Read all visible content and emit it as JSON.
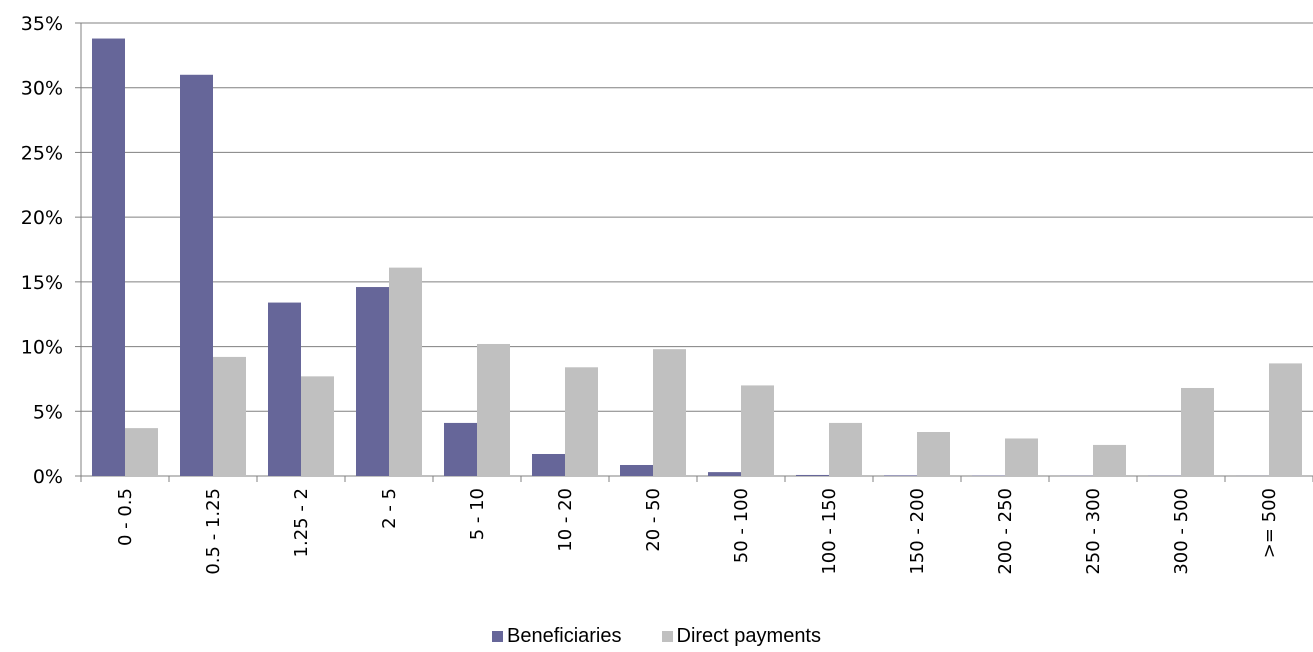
{
  "chart_data": {
    "type": "bar",
    "title": "",
    "xlabel": "",
    "ylabel": "",
    "ylim": [
      0,
      35
    ],
    "y_ticks": [
      "0%",
      "5%",
      "10%",
      "15%",
      "20%",
      "25%",
      "30%",
      "35%"
    ],
    "grid": "horizontal",
    "legend_position": "bottom",
    "categories": [
      "0 - 0.5",
      "0.5 - 1.25",
      "1.25 - 2",
      "2 - 5",
      "5 - 10",
      "10 - 20",
      "20 - 50",
      "50 - 100",
      "100 - 150",
      "150 - 200",
      "200 - 250",
      "250 - 300",
      "300 - 500",
      ">= 500"
    ],
    "series": [
      {
        "name": "Beneficiaries",
        "color": "#666699",
        "values": [
          33.8,
          31.0,
          13.4,
          14.6,
          4.1,
          1.7,
          0.85,
          0.3,
          0.08,
          0.05,
          0.03,
          0.02,
          0.02,
          0.01
        ]
      },
      {
        "name": "Direct payments",
        "color": "#c0c0c0",
        "values": [
          3.7,
          9.2,
          7.7,
          16.1,
          10.2,
          8.4,
          9.8,
          7.0,
          4.1,
          3.4,
          2.9,
          2.4,
          6.8,
          8.7
        ]
      }
    ]
  }
}
